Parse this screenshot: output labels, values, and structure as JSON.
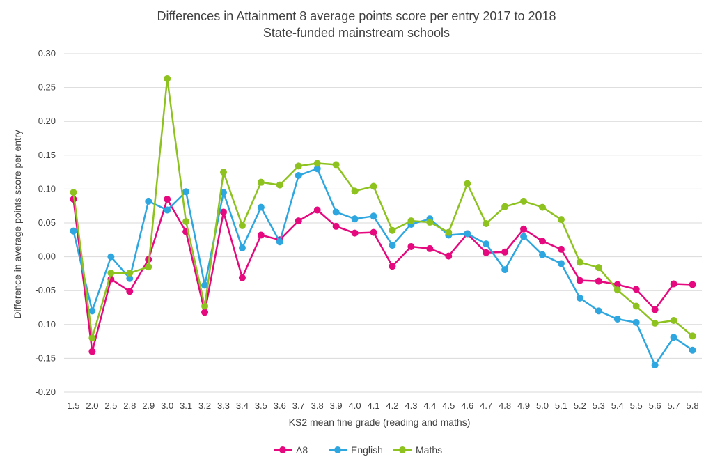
{
  "chart_data": {
    "type": "line",
    "title": "Differences in Attainment 8 average points score per entry 2017 to 2018",
    "subtitle": "State-funded mainstream schools",
    "xlabel": "KS2 mean fine grade (reading and maths)",
    "ylabel": "Difference in average points score per entry",
    "ylim": [
      -0.2,
      0.3
    ],
    "yticks": [
      "0.30",
      "0.25",
      "0.20",
      "0.15",
      "0.10",
      "0.05",
      "0.00",
      "-0.05",
      "-0.10",
      "-0.15",
      "-0.20"
    ],
    "grid": true,
    "legend_position": "bottom",
    "categories": [
      "1.5",
      "2.0",
      "2.5",
      "2.8",
      "2.9",
      "3.0",
      "3.1",
      "3.2",
      "3.3",
      "3.4",
      "3.5",
      "3.6",
      "3.7",
      "3.8",
      "3.9",
      "4.0",
      "4.1",
      "4.2",
      "4.3",
      "4.4",
      "4.5",
      "4.6",
      "4.7",
      "4.8",
      "4.9",
      "5.0",
      "5.1",
      "5.2",
      "5.3",
      "5.4",
      "5.5",
      "5.6",
      "5.7",
      "5.8"
    ],
    "series": [
      {
        "name": "A8",
        "color": "#e5087e",
        "values": [
          0.085,
          -0.14,
          -0.033,
          -0.051,
          -0.004,
          0.085,
          0.037,
          -0.082,
          0.066,
          -0.031,
          0.032,
          0.025,
          0.053,
          0.069,
          0.045,
          0.035,
          0.036,
          -0.014,
          0.015,
          0.012,
          0.001,
          0.034,
          0.006,
          0.007,
          0.041,
          0.023,
          0.011,
          -0.035,
          -0.036,
          -0.041,
          -0.048,
          -0.078,
          -0.04,
          -0.041
        ]
      },
      {
        "name": "English",
        "color": "#2ea7e0",
        "values": [
          0.038,
          -0.08,
          0.0,
          -0.032,
          0.082,
          0.069,
          0.096,
          -0.042,
          0.095,
          0.013,
          0.073,
          0.022,
          0.12,
          0.13,
          0.066,
          0.056,
          0.06,
          0.017,
          0.048,
          0.056,
          0.032,
          0.034,
          0.019,
          -0.019,
          0.03,
          0.003,
          -0.01,
          -0.061,
          -0.08,
          -0.092,
          -0.097,
          -0.16,
          -0.119,
          -0.138
        ]
      },
      {
        "name": "Maths",
        "color": "#8dc21f",
        "values": [
          0.095,
          -0.12,
          -0.024,
          -0.024,
          -0.015,
          0.263,
          0.052,
          -0.073,
          0.125,
          0.046,
          0.11,
          0.106,
          0.134,
          0.138,
          0.136,
          0.097,
          0.104,
          0.039,
          0.053,
          0.051,
          0.036,
          0.108,
          0.049,
          0.074,
          0.082,
          0.073,
          0.055,
          -0.008,
          -0.016,
          -0.049,
          -0.073,
          -0.098,
          -0.094,
          -0.117
        ]
      }
    ]
  }
}
